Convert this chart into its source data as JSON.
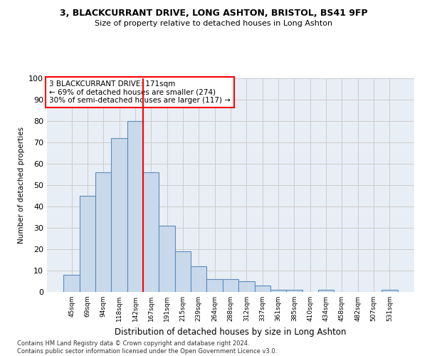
{
  "title_line1": "3, BLACKCURRANT DRIVE, LONG ASHTON, BRISTOL, BS41 9FP",
  "title_line2": "Size of property relative to detached houses in Long Ashton",
  "xlabel": "Distribution of detached houses by size in Long Ashton",
  "ylabel": "Number of detached properties",
  "bar_labels": [
    "45sqm",
    "69sqm",
    "94sqm",
    "118sqm",
    "142sqm",
    "167sqm",
    "191sqm",
    "215sqm",
    "239sqm",
    "264sqm",
    "288sqm",
    "312sqm",
    "337sqm",
    "361sqm",
    "385sqm",
    "410sqm",
    "434sqm",
    "458sqm",
    "482sqm",
    "507sqm",
    "531sqm"
  ],
  "bar_values": [
    8,
    45,
    56,
    72,
    80,
    56,
    31,
    19,
    12,
    6,
    6,
    5,
    3,
    1,
    1,
    0,
    1,
    0,
    0,
    0,
    1
  ],
  "bar_color": "#c9d9ec",
  "bar_edge_color": "#5b8db8",
  "grid_color": "#cccccc",
  "annotation_text": "3 BLACKCURRANT DRIVE: 171sqm\n← 69% of detached houses are smaller (274)\n30% of semi-detached houses are larger (117) →",
  "annotation_box_color": "white",
  "annotation_box_edge": "red",
  "vline_x": 4.5,
  "vline_color": "red",
  "ylim": [
    0,
    100
  ],
  "yticks": [
    0,
    10,
    20,
    30,
    40,
    50,
    60,
    70,
    80,
    90,
    100
  ],
  "footnote": "Contains HM Land Registry data © Crown copyright and database right 2024.\nContains public sector information licensed under the Open Government Licence v3.0.",
  "bg_color": "#e8eef6"
}
